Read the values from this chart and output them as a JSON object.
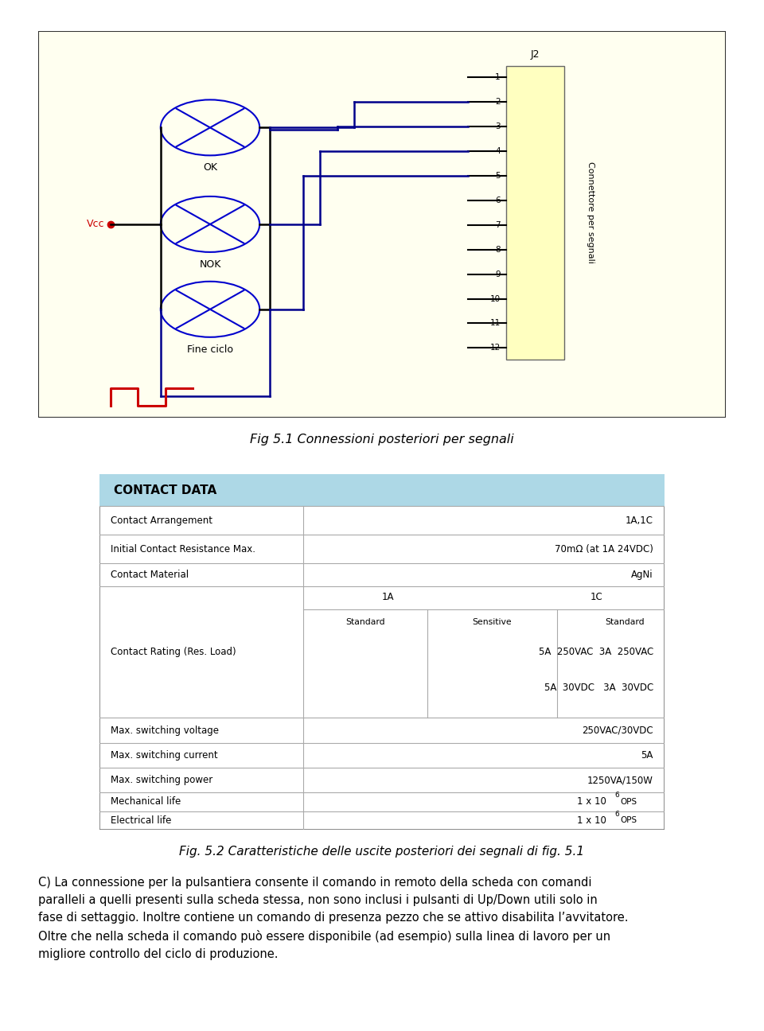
{
  "page_bg": "#ffffff",
  "circuit_bg": "#fffff0",
  "circuit_border": "#333333",
  "fig_caption1": "Fig 5.1 Connessioni posteriori per segnali",
  "fig_caption2": "Fig. 5.2 Caratteristiche delle uscite posteriori dei segnali di fig. 5.1",
  "table_header_bg": "#add8e6",
  "table_header_text": "CONTACT DATA",
  "connector_label": "J2",
  "connector_pins": [
    "1",
    "2",
    "3",
    "4",
    "5",
    "6",
    "7",
    "8",
    "9",
    "10",
    "11",
    "12"
  ],
  "connector_side_label": "Connettore per segnali",
  "lamp_labels": [
    "OK",
    "NOK",
    "Fine ciclo"
  ],
  "vcc_label": "Vcc",
  "body_text": "C) La connessione per la pulsantiera consente il comando in remoto della scheda con comandi\nparalleli a quelli presenti sulla scheda stessa, non sono inclusi i pulsanti di Up/Down utili solo in\nfase di settaggio. Inoltre contiene un comando di presenza pezzo che se attivo disabilita l’avvitatore.\nOltre che nella scheda il comando può essere disponibile (ad esempio) sulla linea di lavoro per un\nmigliore controllo del ciclo di produzione.",
  "blue_color": "#00008b",
  "red_color": "#cc0000",
  "lamp_circle_color": "#0000cd",
  "black_wire": "#000000"
}
